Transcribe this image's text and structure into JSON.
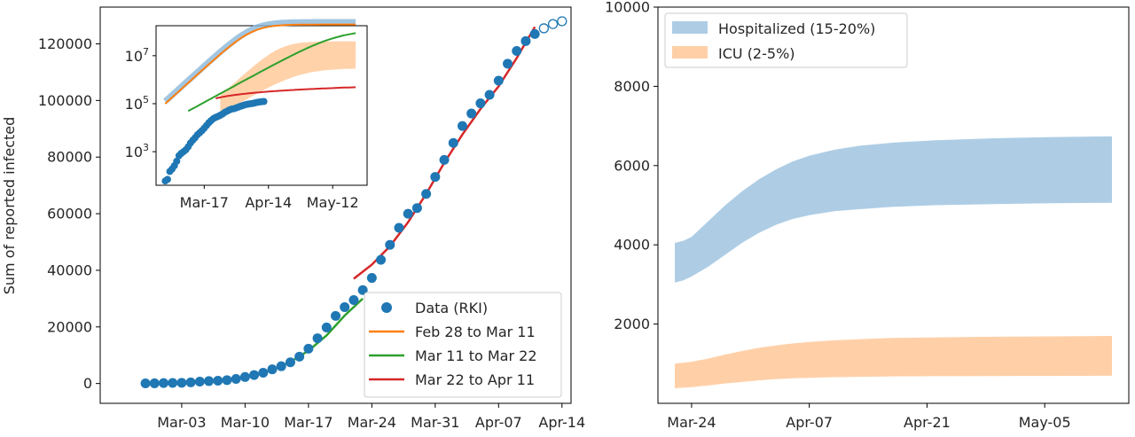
{
  "chart_data": [
    {
      "type": "scatter",
      "ylabel": "Sum of reported infected",
      "x_ticks": [
        "Mar-03",
        "Mar-10",
        "Mar-17",
        "Mar-24",
        "Mar-31",
        "Apr-07",
        "Apr-14"
      ],
      "y_ticks": [
        "0",
        "20000",
        "40000",
        "60000",
        "80000",
        "100000",
        "120000"
      ],
      "ylim": [
        -7000,
        133000
      ],
      "x_range_days": [
        -5,
        47
      ],
      "x_origin_date": "Feb 28",
      "data_filled": {
        "name": "Data (RKI)",
        "color": "#1f77b4",
        "x": [
          0,
          1,
          2,
          3,
          4,
          5,
          6,
          7,
          8,
          9,
          10,
          11,
          12,
          13,
          14,
          15,
          16,
          17,
          18,
          19,
          20,
          21,
          22,
          23,
          24,
          25,
          26,
          27,
          28,
          29,
          30,
          31,
          32,
          33,
          34,
          35,
          36,
          37,
          38,
          39,
          40,
          41,
          42,
          43
        ],
        "y": [
          60,
          70,
          150,
          190,
          260,
          400,
          680,
          850,
          1000,
          1200,
          1600,
          2300,
          3000,
          3800,
          5000,
          6100,
          7500,
          9500,
          12300,
          16000,
          19800,
          23900,
          27000,
          29500,
          33000,
          37300,
          43700,
          49000,
          55000,
          60000,
          62000,
          67000,
          73000,
          79000,
          85000,
          91000,
          95400,
          99000,
          102000,
          107000,
          113000,
          117500,
          121000,
          123500
        ]
      },
      "data_open": {
        "x": [
          44,
          45,
          46
        ],
        "y": [
          125500,
          127000,
          128000
        ]
      },
      "series": [
        {
          "name": "Feb 28 to Mar 11",
          "color": "#ff7f0e",
          "x": [
            0,
            2,
            4,
            6,
            8,
            10,
            12
          ],
          "y": [
            80,
            150,
            320,
            600,
            1100,
            1800,
            2800
          ]
        },
        {
          "name": "Mar 11 to Mar 22",
          "color": "#2ca02c",
          "x": [
            10,
            12,
            14,
            16,
            18,
            20,
            22,
            24
          ],
          "y": [
            1800,
            3000,
            4800,
            7600,
            11600,
            17000,
            24000,
            30000
          ]
        },
        {
          "name": "Mar 22 to Apr 11",
          "color": "#d62728",
          "x": [
            23,
            25,
            27,
            29,
            31,
            33,
            35,
            37,
            39,
            41,
            43
          ],
          "y": [
            37000,
            42000,
            48500,
            57000,
            67000,
            78000,
            88000,
            97000,
            105000,
            115000,
            126000
          ]
        }
      ],
      "legend": "lower-right",
      "inset": {
        "type": "line",
        "yscale": "log",
        "x_ticks": [
          "Mar-17",
          "Apr-14",
          "May-12"
        ],
        "y_ticks": [
          "10^3",
          "10^5",
          "10^7"
        ]
      }
    },
    {
      "type": "area",
      "x_ticks": [
        "Mar-24",
        "Apr-07",
        "Apr-21",
        "May-05"
      ],
      "y_ticks": [
        "2000",
        "4000",
        "6000",
        "8000",
        "10000"
      ],
      "ylim": [
        0,
        10000
      ],
      "x_range_days": [
        0,
        56
      ],
      "x_origin_date": "Mar 20",
      "series": [
        {
          "name": "Hospitalized (15-20%)",
          "color": "#aecde5",
          "x": [
            2,
            3,
            4,
            6,
            8,
            10,
            12,
            14,
            16,
            18,
            21,
            24,
            28,
            33,
            40,
            47,
            54
          ],
          "lower": [
            3050,
            3100,
            3200,
            3450,
            3750,
            4050,
            4300,
            4500,
            4650,
            4750,
            4850,
            4900,
            4960,
            5000,
            5030,
            5050,
            5060
          ],
          "upper": [
            4050,
            4100,
            4200,
            4600,
            5000,
            5350,
            5650,
            5900,
            6100,
            6250,
            6400,
            6500,
            6580,
            6640,
            6690,
            6720,
            6740
          ]
        },
        {
          "name": "ICU (2-5%)",
          "color": "#ffd0a8",
          "x": [
            2,
            4,
            6,
            8,
            10,
            12,
            14,
            16,
            18,
            21,
            24,
            28,
            33,
            40,
            47,
            54
          ],
          "lower": [
            380,
            410,
            450,
            500,
            540,
            580,
            610,
            630,
            645,
            660,
            670,
            680,
            685,
            690,
            692,
            695
          ],
          "upper": [
            1000,
            1050,
            1130,
            1230,
            1320,
            1400,
            1460,
            1510,
            1550,
            1590,
            1620,
            1650,
            1665,
            1680,
            1690,
            1700
          ]
        }
      ],
      "legend": "top-left"
    }
  ]
}
